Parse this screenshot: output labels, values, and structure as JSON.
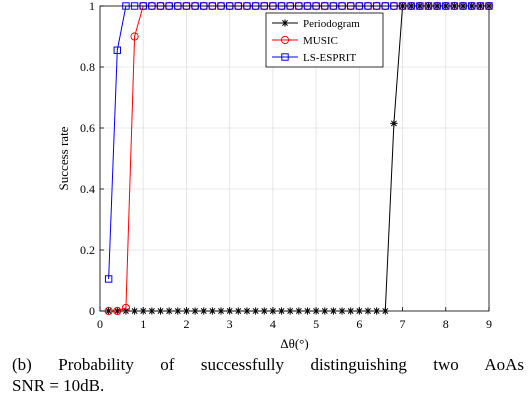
{
  "caption": {
    "line1": "(b) Probability of successfully distinguishing two AoAs",
    "line2": "SNR = 10dB."
  },
  "chart_data": {
    "type": "line",
    "xlabel": "Δθ(°)",
    "ylabel": "Success rate",
    "xlim": [
      0,
      9
    ],
    "ylim": [
      0,
      1
    ],
    "xticks": [
      0,
      1,
      2,
      3,
      4,
      5,
      6,
      7,
      8,
      9
    ],
    "yticks": [
      0,
      0.2,
      0.4,
      0.6,
      0.8,
      1
    ],
    "ytick_labels": [
      "0",
      "0.2",
      "0.4",
      "0.6",
      "0.8",
      "1"
    ],
    "grid": true,
    "legend_position": "top-right",
    "series": [
      {
        "name": "Periodogram",
        "color": "#000000",
        "marker": "star",
        "x": [
          0.2,
          0.4,
          0.6,
          0.8,
          1.0,
          1.2,
          1.4,
          1.6,
          1.8,
          2.0,
          2.2,
          2.4,
          2.6,
          2.8,
          3.0,
          3.2,
          3.4,
          3.6,
          3.8,
          4.0,
          4.2,
          4.4,
          4.6,
          4.8,
          5.0,
          5.2,
          5.4,
          5.6,
          5.8,
          6.0,
          6.2,
          6.4,
          6.6,
          6.8,
          7.0,
          7.2,
          7.4,
          7.6,
          7.8,
          8.0,
          8.2,
          8.4,
          8.6,
          8.8,
          9.0
        ],
        "y": [
          0,
          0,
          0,
          0,
          0,
          0,
          0,
          0,
          0,
          0,
          0,
          0,
          0,
          0,
          0,
          0,
          0,
          0,
          0,
          0,
          0,
          0,
          0,
          0,
          0,
          0,
          0,
          0,
          0,
          0,
          0,
          0,
          0,
          0.615,
          1,
          1,
          1,
          1,
          1,
          1,
          1,
          1,
          1,
          1,
          1
        ]
      },
      {
        "name": "MUSIC",
        "color": "#ff0000",
        "marker": "circle",
        "x": [
          0.2,
          0.4,
          0.6,
          0.8,
          1.0,
          1.2,
          1.4,
          1.6,
          1.8,
          2.0,
          2.2,
          2.4,
          2.6,
          2.8,
          3.0,
          3.2,
          3.4,
          3.6,
          3.8,
          4.0,
          4.2,
          4.4,
          4.6,
          4.8,
          5.0,
          5.2,
          5.4,
          5.6,
          5.8,
          6.0,
          6.2,
          6.4,
          6.6,
          6.8,
          7.0,
          7.2,
          7.4,
          7.6,
          7.8,
          8.0,
          8.2,
          8.4,
          8.6,
          8.8,
          9.0
        ],
        "y": [
          0,
          0,
          0.01,
          0.9,
          1,
          1,
          1,
          1,
          1,
          1,
          1,
          1,
          1,
          1,
          1,
          1,
          1,
          1,
          1,
          1,
          1,
          1,
          1,
          1,
          1,
          1,
          1,
          1,
          1,
          1,
          1,
          1,
          1,
          1,
          1,
          1,
          1,
          1,
          1,
          1,
          1,
          1,
          1,
          1,
          1
        ]
      },
      {
        "name": "LS-ESPRIT",
        "color": "#0000ff",
        "marker": "square",
        "x": [
          0.2,
          0.4,
          0.6,
          0.8,
          1.0,
          1.2,
          1.4,
          1.6,
          1.8,
          2.0,
          2.2,
          2.4,
          2.6,
          2.8,
          3.0,
          3.2,
          3.4,
          3.6,
          3.8,
          4.0,
          4.2,
          4.4,
          4.6,
          4.8,
          5.0,
          5.2,
          5.4,
          5.6,
          5.8,
          6.0,
          6.2,
          6.4,
          6.6,
          6.8,
          7.0,
          7.2,
          7.4,
          7.6,
          7.8,
          8.0,
          8.2,
          8.4,
          8.6,
          8.8,
          9.0
        ],
        "y": [
          0.105,
          0.855,
          1,
          1,
          1,
          1,
          1,
          1,
          1,
          1,
          1,
          1,
          1,
          1,
          1,
          1,
          1,
          1,
          1,
          1,
          1,
          1,
          1,
          1,
          1,
          1,
          1,
          1,
          1,
          1,
          1,
          1,
          1,
          1,
          1,
          1,
          1,
          1,
          1,
          1,
          1,
          1,
          1,
          1,
          1
        ]
      }
    ]
  }
}
